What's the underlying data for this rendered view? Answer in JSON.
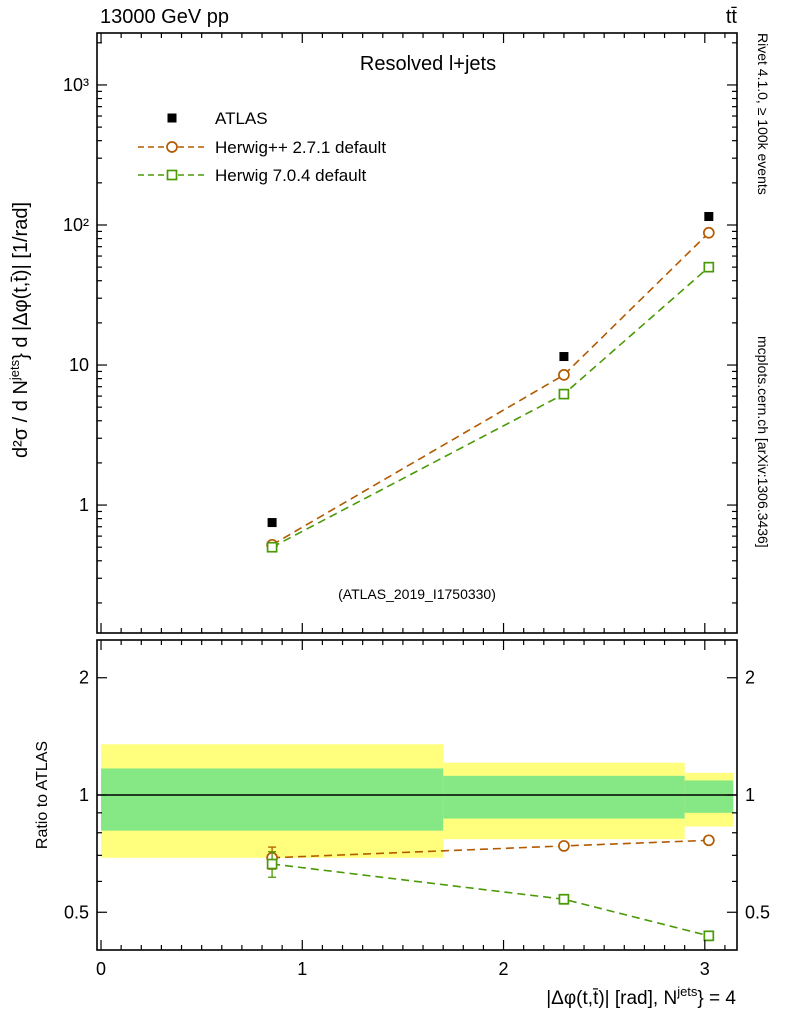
{
  "header": {
    "left": "13000 GeV pp",
    "right": "tt̄"
  },
  "side_notes": {
    "top": "Rivet 4.1.0, ≥ 100k events",
    "bottom": "mcplots.cern.ch [arXiv:1306.3436]"
  },
  "chart_data": {
    "type": "line",
    "title": "Resolved l+jets",
    "watermark": "(ATLAS_2019_I1750330)",
    "xlabel": "|Δφ(t,t̄)| [rad], N^{jets}} = 4",
    "ylabel_main": "d²σ / d N^{jets}} d |Δφ(t,t̄)| [1/rad]",
    "ylabel_ratio": "Ratio to ATLAS",
    "log_y_main": true,
    "log_y_ratio": true,
    "xlim": [
      -0.02,
      3.16
    ],
    "ylim_main": [
      0.122,
      2350
    ],
    "ylim_ratio": [
      0.4,
      2.5
    ],
    "x_ticks": [
      {
        "v": 0,
        "label": "0"
      },
      {
        "v": 1,
        "label": "1"
      },
      {
        "v": 2,
        "label": "2"
      },
      {
        "v": 3,
        "label": "3"
      }
    ],
    "y_ticks_main": [
      {
        "v": 1,
        "label": "1"
      },
      {
        "v": 10,
        "label": "10"
      },
      {
        "v": 100,
        "label": "10²"
      },
      {
        "v": 1000,
        "label": "10³"
      }
    ],
    "y_ticks_ratio": [
      {
        "v": 0.5,
        "label": "0.5"
      },
      {
        "v": 1,
        "label": "1"
      },
      {
        "v": 2,
        "label": "2"
      }
    ],
    "bin_edges": [
      0,
      1.7,
      2.9,
      3.1416
    ],
    "x": [
      0.85,
      2.3,
      3.02
    ],
    "series": [
      {
        "key": "atlas",
        "name": "ATLAS",
        "color": "#000000",
        "marker": "filled-square",
        "line": "none",
        "values": [
          0.75,
          11.5,
          115
        ],
        "err_frac": [
          0.04,
          0.03,
          0.03
        ]
      },
      {
        "key": "herwigpp",
        "name": "Herwig++ 2.7.1 default",
        "color": "#b35a00",
        "marker": "open-circle",
        "line": "dashed",
        "values": [
          0.52,
          8.5,
          88
        ],
        "err_frac": [
          0.06,
          0.02,
          0.015
        ],
        "ratio": [
          0.69,
          0.74,
          0.765
        ],
        "ratio_err": [
          0.045,
          0.012,
          0.01
        ]
      },
      {
        "key": "herwig7",
        "name": "Herwig 7.0.4 default",
        "color": "#4a9a08",
        "marker": "open-square",
        "line": "dashed",
        "values": [
          0.5,
          6.2,
          50
        ],
        "err_frac": [
          0.06,
          0.02,
          0.015
        ],
        "ratio": [
          0.665,
          0.54,
          0.435
        ],
        "ratio_err": [
          0.05,
          0.015,
          0.012
        ]
      }
    ],
    "atlas_uncertainty_bands": [
      {
        "xlo": 0,
        "xhi": 1.7,
        "yellow": [
          0.69,
          1.35
        ],
        "green": [
          0.81,
          1.17
        ]
      },
      {
        "xlo": 1.7,
        "xhi": 2.9,
        "yellow": [
          0.77,
          1.21
        ],
        "green": [
          0.87,
          1.12
        ]
      },
      {
        "xlo": 2.9,
        "xhi": 3.1416,
        "yellow": [
          0.83,
          1.14
        ],
        "green": [
          0.9,
          1.09
        ]
      }
    ],
    "band_colors": {
      "yellow": "#ffff7d",
      "green": "#85e885"
    }
  }
}
